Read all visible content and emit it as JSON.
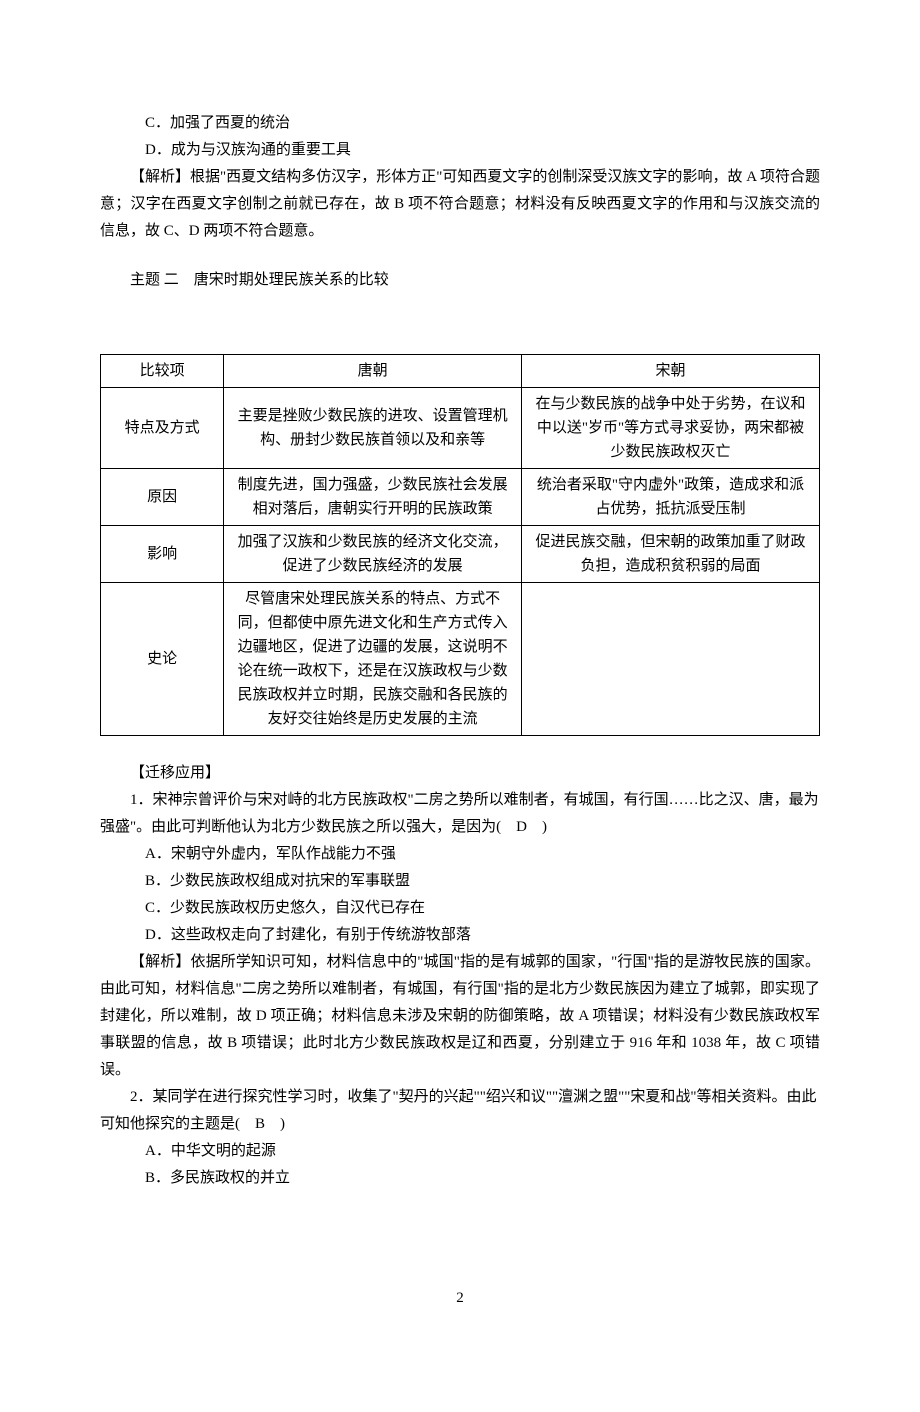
{
  "pre": {
    "optC": "C．加强了西夏的统治",
    "optD": "D．成为与汉族沟通的重要工具",
    "explain": "【解析】根据\"西夏文结构多仿汉字，形体方正\"可知西夏文字的创制深受汉族文字的影响，故 A 项符合题意；汉字在西夏文字创制之前就已存在，故 B 项不符合题意；材料没有反映西夏文字的作用和与汉族交流的信息，故 C、D 两项不符合题意。"
  },
  "topic": {
    "heading": "主题 二　唐宋时期处理民族关系的比较"
  },
  "table": {
    "header": {
      "c1": "比较项",
      "c2": "唐朝",
      "c3": "宋朝"
    },
    "rows": [
      {
        "label": "特点及方式",
        "tang": "主要是挫败少数民族的进攻、设置管理机构、册封少数民族首领以及和亲等",
        "song": "在与少数民族的战争中处于劣势，在议和中以送\"岁币\"等方式寻求妥协，两宋都被少数民族政权灭亡"
      },
      {
        "label": "原因",
        "tang": "制度先进，国力强盛，少数民族社会发展相对落后，唐朝实行开明的民族政策",
        "song": "统治者采取\"守内虚外\"政策，造成求和派占优势，抵抗派受压制"
      },
      {
        "label": "影响",
        "tang": "加强了汉族和少数民族的经济文化交流，促进了少数民族经济的发展",
        "song": "促进民族交融，但宋朝的政策加重了财政负担，造成积贫积弱的局面"
      },
      {
        "label": "史论",
        "tang": "尽管唐宋处理民族关系的特点、方式不同，但都使中原先进文化和生产方式传入边疆地区，促进了边疆的发展，这说明不论在统一政权下，还是在汉族政权与少数民族政权并立时期，民族交融和各民族的友好交往始终是历史发展的主流",
        "song": ""
      }
    ]
  },
  "transfer": {
    "heading": "【迁移应用】",
    "q1": {
      "stem": "1．宋神宗曾评价与宋对峙的北方民族政权\"二房之势所以难制者，有城国，有行国……比之汉、唐，最为强盛\"。由此可判断他认为北方少数民族之所以强大，是因为(　D　)",
      "A": "A．宋朝守外虚内，军队作战能力不强",
      "B": "B．少数民族政权组成对抗宋的军事联盟",
      "C": "C．少数民族政权历史悠久，自汉代已存在",
      "D": "D．这些政权走向了封建化，有别于传统游牧部落",
      "explain": "【解析】依据所学知识可知，材料信息中的\"城国\"指的是有城郭的国家，\"行国\"指的是游牧民族的国家。由此可知，材料信息\"二房之势所以难制者，有城国，有行国\"指的是北方少数民族因为建立了城郭，即实现了封建化，所以难制，故 D 项正确；材料信息未涉及宋朝的防御策略，故 A 项错误；材料没有少数民族政权军事联盟的信息，故 B 项错误；此时北方少数民族政权是辽和西夏，分别建立于 916 年和 1038 年，故 C 项错误。"
    },
    "q2": {
      "stem": "2．某同学在进行探究性学习时，收集了\"契丹的兴起\"\"绍兴和议\"\"澶渊之盟\"\"宋夏和战\"等相关资料。由此可知他探究的主题是(　B　)",
      "A": "A．中华文明的起源",
      "B": "B．多民族政权的并立"
    }
  },
  "pageNumber": "2"
}
